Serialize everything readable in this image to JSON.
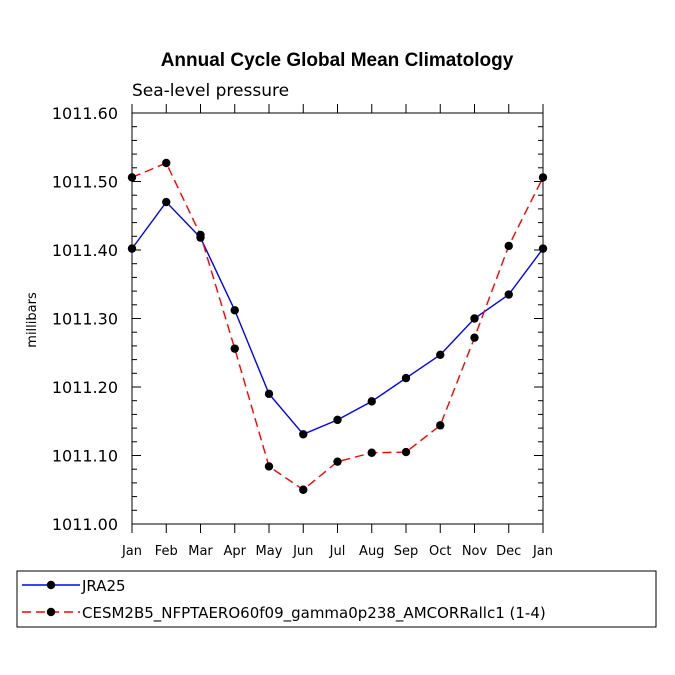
{
  "chart_data": {
    "type": "line",
    "title": "Annual Cycle Global Mean Climatology",
    "subtitle": "Sea-level pressure",
    "xlabel": "",
    "ylabel": "millibars",
    "categories": [
      "Jan",
      "Feb",
      "Mar",
      "Apr",
      "May",
      "Jun",
      "Jul",
      "Aug",
      "Sep",
      "Oct",
      "Nov",
      "Dec",
      "Jan"
    ],
    "ylim": [
      1011.0,
      1011.6
    ],
    "yticks": [
      1011.0,
      1011.1,
      1011.2,
      1011.3,
      1011.4,
      1011.5,
      1011.6
    ],
    "ytick_labels": [
      "1011.00",
      "1011.10",
      "1011.20",
      "1011.30",
      "1011.40",
      "1011.50",
      "1011.60"
    ],
    "series": [
      {
        "name": "JRA25",
        "color": "#0000ff",
        "dash": "solid",
        "values": [
          1011.402,
          1011.47,
          1011.418,
          1011.312,
          1011.19,
          1011.131,
          1011.152,
          1011.179,
          1011.213,
          1011.247,
          1011.3,
          1011.335,
          1011.402
        ]
      },
      {
        "name": "CESM2B5_NFPTAERO60f09_gamma0p238_AMCORRallc1 (1-4)",
        "color": "#ff0000",
        "dash": "dashed",
        "values": [
          1011.506,
          1011.527,
          1011.422,
          1011.256,
          1011.084,
          1011.05,
          1011.091,
          1011.104,
          1011.105,
          1011.144,
          1011.272,
          1011.406,
          1011.506
        ]
      }
    ],
    "marker_color": "#000000",
    "legend_position": "bottom-left"
  }
}
